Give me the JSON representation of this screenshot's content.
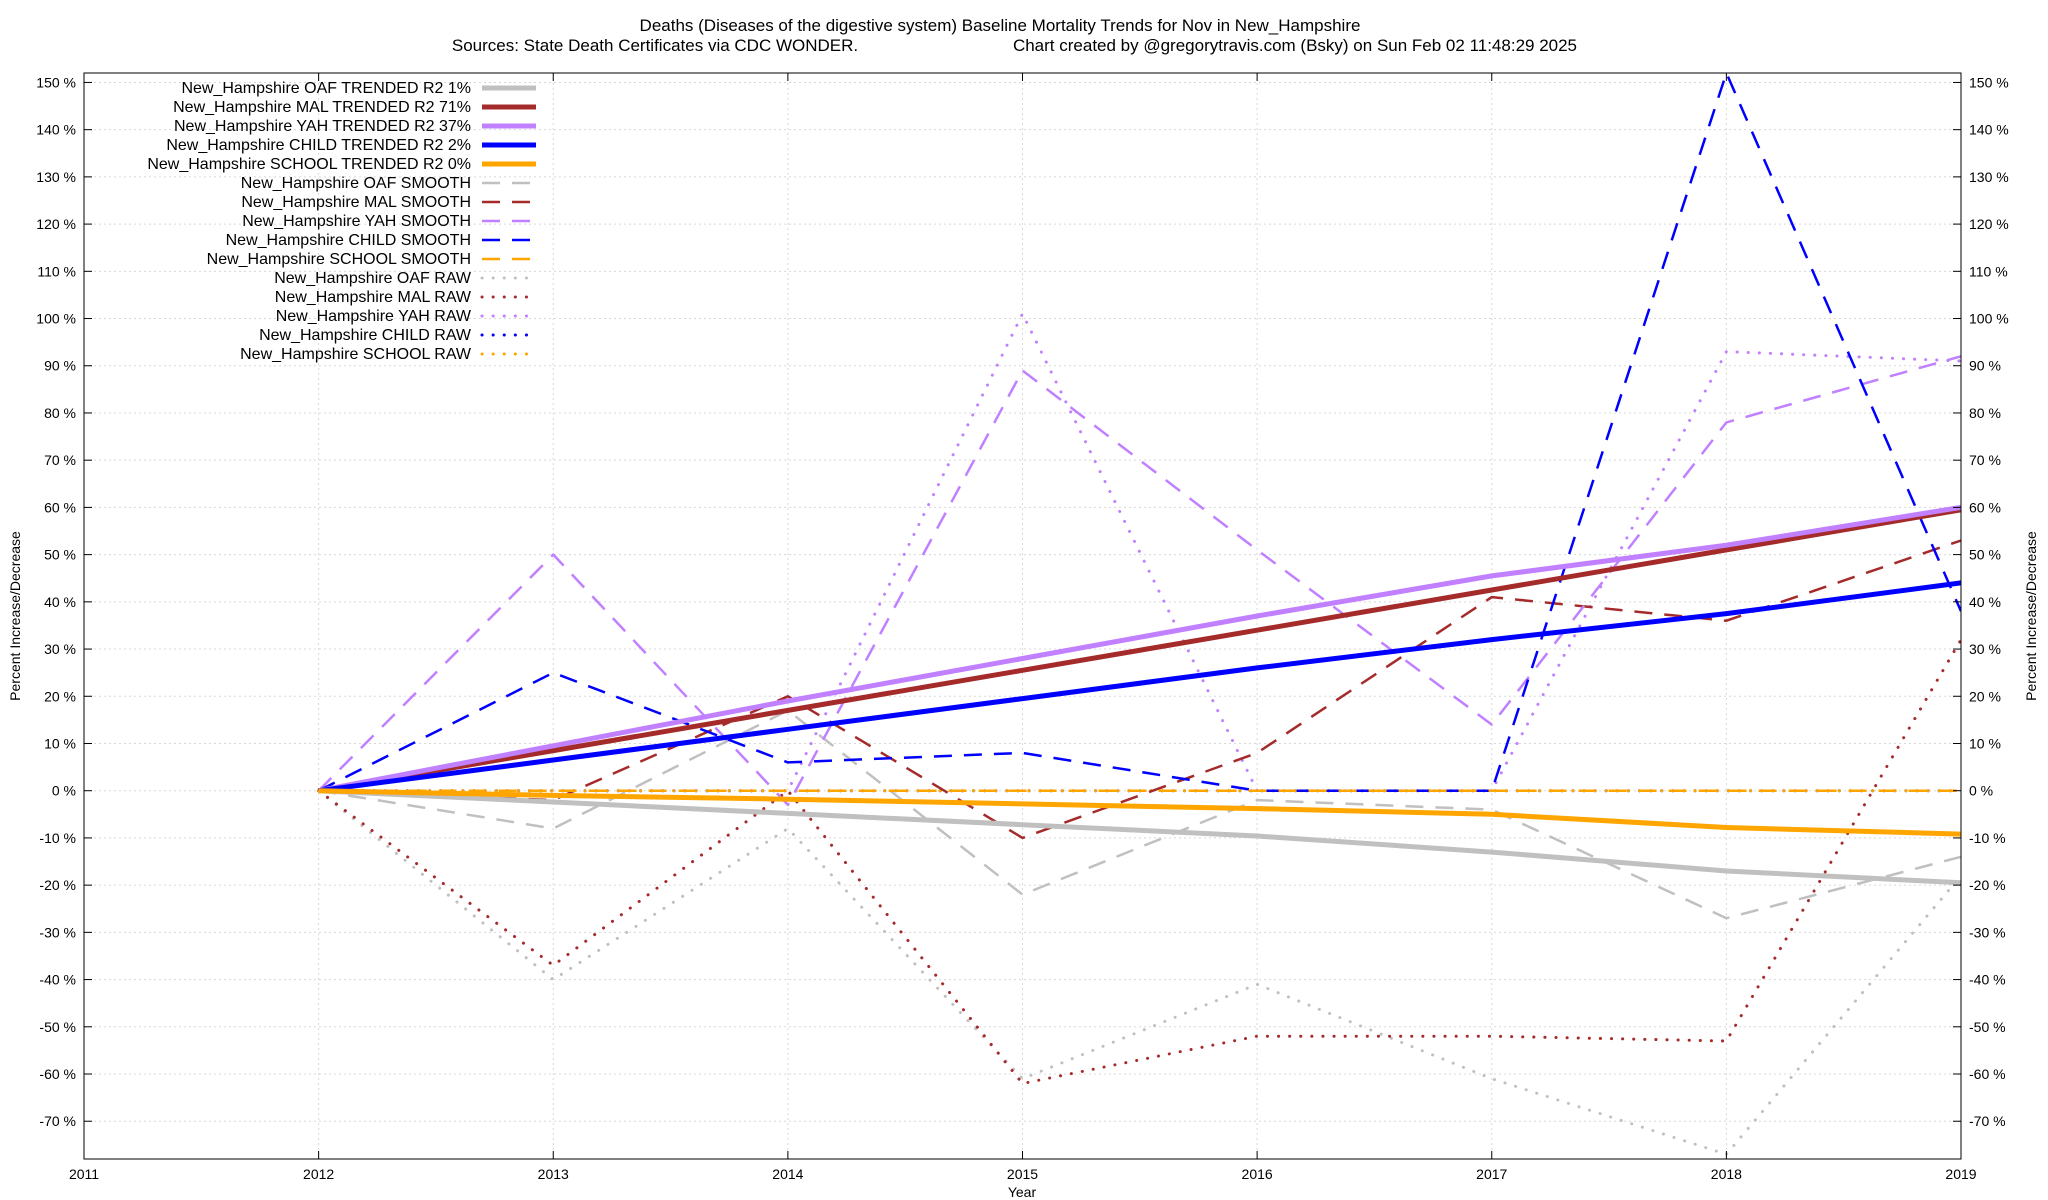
{
  "chart_data": {
    "type": "line",
    "title_line1": "Deaths (Diseases of the digestive system)  Baseline Mortality Trends for Nov in New_Hampshire",
    "title_line2_left": "Sources: State Death Certificates via CDC WONDER.",
    "title_line2_right": "Chart created by @gregorytravis.com (Bsky) on Sun Feb 02 11:48:29 2025",
    "xlabel": "Year",
    "ylabel_left": "Percent Increase/Decrease",
    "ylabel_right": "Percent Increase/Decrease",
    "xlim": [
      2011,
      2019
    ],
    "ylim": [
      -78,
      152
    ],
    "x_ticks": [
      2011,
      2012,
      2013,
      2014,
      2015,
      2016,
      2017,
      2018,
      2019
    ],
    "y_ticks": [
      150,
      140,
      130,
      120,
      110,
      100,
      90,
      80,
      70,
      60,
      50,
      40,
      30,
      20,
      10,
      0,
      -10,
      -20,
      -30,
      -40,
      -50,
      -60,
      -70
    ],
    "y_tick_suffix": " %",
    "grid": true,
    "legend_position": "top-left",
    "x": [
      2012,
      2013,
      2014,
      2015,
      2016,
      2017,
      2018,
      2019
    ],
    "series": [
      {
        "name": "New_Hampshire OAF TRENDED R2  1%",
        "style": "solid",
        "color": "#c0c0c0",
        "values": [
          0,
          -2.4,
          -4.8,
          -7.2,
          -9.6,
          -13,
          -17,
          -19.5
        ]
      },
      {
        "name": "New_Hampshire MAL TRENDED R2  71%",
        "style": "solid",
        "color": "#a52a2a",
        "values": [
          0,
          8.5,
          17,
          25.5,
          34,
          42.5,
          51,
          59.5
        ]
      },
      {
        "name": "New_Hampshire YAH TRENDED R2  37%",
        "style": "solid",
        "color": "#c080ff",
        "values": [
          0,
          9.5,
          19,
          28,
          37,
          45.5,
          52,
          60
        ]
      },
      {
        "name": "New_Hampshire CHILD TRENDED R2  2%",
        "style": "solid",
        "color": "#0000ff",
        "values": [
          0,
          6.5,
          13,
          19.5,
          26,
          32,
          37.5,
          44
        ]
      },
      {
        "name": "New_Hampshire SCHOOL TRENDED R2  0%",
        "style": "solid",
        "color": "#ffa500",
        "values": [
          0,
          -1,
          -1.8,
          -2.8,
          -3.8,
          -5,
          -7.8,
          -9.2
        ]
      },
      {
        "name": "New_Hampshire OAF SMOOTH",
        "style": "dashed",
        "color": "#c0c0c0",
        "values": [
          0,
          -8,
          17,
          -22,
          -2,
          -4,
          -27,
          -14
        ]
      },
      {
        "name": "New_Hampshire MAL SMOOTH",
        "style": "dashed",
        "color": "#a52a2a",
        "values": [
          0,
          -2,
          20,
          -10,
          8,
          41,
          36,
          53
        ]
      },
      {
        "name": "New_Hampshire YAH SMOOTH",
        "style": "dashed",
        "color": "#c080ff",
        "values": [
          0,
          50,
          -3,
          89,
          51,
          14,
          78,
          92
        ]
      },
      {
        "name": "New_Hampshire CHILD SMOOTH",
        "style": "dashed",
        "color": "#0000ff",
        "values": [
          0,
          25,
          6,
          8,
          0,
          0,
          152,
          38
        ]
      },
      {
        "name": "New_Hampshire SCHOOL SMOOTH",
        "style": "dashed",
        "color": "#ffa500",
        "values": [
          0,
          0,
          0,
          0,
          0,
          0,
          0,
          0
        ]
      },
      {
        "name": "New_Hampshire OAF RAW",
        "style": "dotted",
        "color": "#c0c0c0",
        "values": [
          0,
          -40,
          -8,
          -61,
          -41,
          -61,
          -77,
          -18
        ]
      },
      {
        "name": "New_Hampshire MAL RAW",
        "style": "dotted",
        "color": "#a52a2a",
        "values": [
          0,
          -37,
          0,
          -62,
          -52,
          -52,
          -53,
          32
        ]
      },
      {
        "name": "New_Hampshire YAH RAW",
        "style": "dotted",
        "color": "#c080ff",
        "values": [
          0,
          0,
          0,
          101,
          0,
          0,
          93,
          91
        ]
      },
      {
        "name": "New_Hampshire CHILD RAW",
        "style": "dotted",
        "color": "#0000ff",
        "values": [
          0,
          0,
          0,
          0,
          0,
          0,
          0,
          0
        ]
      },
      {
        "name": "New_Hampshire SCHOOL RAW",
        "style": "dotted",
        "color": "#ffa500",
        "values": [
          0,
          0,
          0,
          0,
          0,
          0,
          0,
          0
        ]
      }
    ]
  }
}
